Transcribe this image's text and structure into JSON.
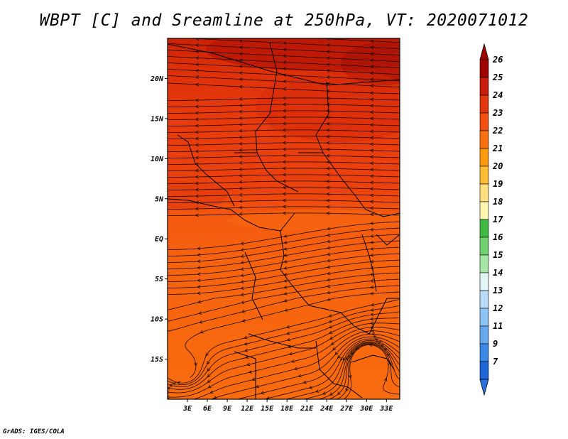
{
  "title": "WBPT [C] and Sreamline at 250hPa, VT: 2020071012",
  "credit": "GrADS: IGES/COLA",
  "map": {
    "lon_range": [
      0,
      35
    ],
    "lat_range": [
      -20,
      25
    ],
    "x_ticks": [
      "3E",
      "6E",
      "9E",
      "12E",
      "15E",
      "18E",
      "21E",
      "24E",
      "27E",
      "30E",
      "33E"
    ],
    "x_tick_values": [
      3,
      6,
      9,
      12,
      15,
      18,
      21,
      24,
      27,
      30,
      33
    ],
    "y_ticks": [
      "20N",
      "15N",
      "10N",
      "5N",
      "EQ",
      "5S",
      "10S",
      "15S"
    ],
    "y_tick_values": [
      20,
      15,
      10,
      5,
      0,
      -5,
      -10,
      -15
    ]
  },
  "colorbar": {
    "labels": [
      "26",
      "25",
      "24",
      "23",
      "22",
      "21",
      "20",
      "19",
      "18",
      "17",
      "16",
      "15",
      "14",
      "13",
      "12",
      "11",
      "9",
      "7"
    ],
    "colors": [
      "#a00000",
      "#c81d0a",
      "#e2360e",
      "#f34f10",
      "#fb6f0f",
      "#ff9a0a",
      "#ffbd33",
      "#ffe080",
      "#fff7b0",
      "#3fb93f",
      "#6fd16f",
      "#a6e6a6",
      "#e2f6f6",
      "#b8dcf8",
      "#8ec4f5",
      "#66a9ef",
      "#3d8ae6",
      "#1e66d9"
    ],
    "top_arrow_color": "#a00000",
    "bottom_arrow_color": "#2a6fe0"
  }
}
